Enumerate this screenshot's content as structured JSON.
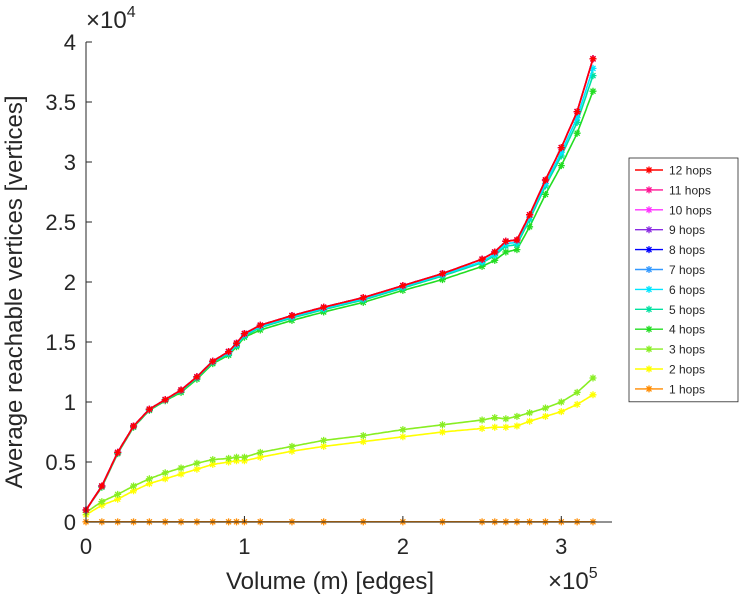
{
  "chart_data": {
    "type": "line",
    "title": "",
    "xlabel": "Volume (m) [edges]",
    "ylabel": "Average reachable vertices [vertices]",
    "x_exponent_label": "×10",
    "x_exponent": "5",
    "y_exponent_label": "×10",
    "y_exponent": "4",
    "xlim": [
      0,
      332000
    ],
    "ylim": [
      0,
      40000
    ],
    "xticks": [
      0,
      100000,
      200000,
      300000
    ],
    "xtick_labels": [
      "0",
      "1",
      "2",
      "3"
    ],
    "yticks": [
      0,
      5000,
      10000,
      15000,
      20000,
      25000,
      30000,
      35000,
      40000
    ],
    "ytick_labels": [
      "0",
      "0.5",
      "1",
      "1.5",
      "2",
      "2.5",
      "3",
      "3.5",
      "4"
    ],
    "grid": false,
    "legend_position": "right",
    "marker": "asterisk",
    "x": [
      0,
      10000,
      20000,
      30000,
      40000,
      50000,
      60000,
      70000,
      80000,
      90000,
      95000,
      100000,
      110000,
      130000,
      150000,
      175000,
      200000,
      225000,
      250000,
      258000,
      265000,
      272000,
      280000,
      290000,
      300000,
      310000,
      320000
    ],
    "series": [
      {
        "name": "12 hops",
        "color": "#ff0000",
        "values": [
          1000,
          3000,
          5800,
          8000,
          9400,
          10200,
          11000,
          12100,
          13400,
          14200,
          14900,
          15700,
          16400,
          17200,
          17900,
          18700,
          19700,
          20700,
          21900,
          22500,
          23400,
          23500,
          25600,
          28500,
          31200,
          34200,
          38600
        ]
      },
      {
        "name": "11 hops",
        "color": "#ff1493",
        "values": [
          1000,
          3000,
          5800,
          8000,
          9400,
          10200,
          11000,
          12100,
          13400,
          14200,
          14900,
          15700,
          16400,
          17200,
          17900,
          18700,
          19700,
          20700,
          21900,
          22500,
          23400,
          23500,
          25600,
          28500,
          31200,
          34200,
          38600
        ]
      },
      {
        "name": "10 hops",
        "color": "#ff33ff",
        "values": [
          1000,
          3000,
          5800,
          8000,
          9400,
          10200,
          11000,
          12100,
          13400,
          14200,
          14900,
          15700,
          16400,
          17200,
          17900,
          18700,
          19700,
          20700,
          21900,
          22500,
          23400,
          23500,
          25600,
          28500,
          31200,
          34200,
          38600
        ]
      },
      {
        "name": "9 hops",
        "color": "#8a2be2",
        "values": [
          1000,
          3000,
          5800,
          8000,
          9400,
          10200,
          11000,
          12100,
          13400,
          14200,
          14900,
          15700,
          16400,
          17200,
          17900,
          18700,
          19700,
          20700,
          21900,
          22500,
          23400,
          23500,
          25600,
          28500,
          31200,
          34200,
          38600
        ]
      },
      {
        "name": "8 hops",
        "color": "#0000ff",
        "values": [
          1000,
          3000,
          5800,
          8000,
          9400,
          10200,
          11000,
          12100,
          13400,
          14200,
          14900,
          15700,
          16400,
          17200,
          17900,
          18700,
          19700,
          20700,
          21900,
          22500,
          23400,
          23500,
          25600,
          28500,
          31200,
          34200,
          38600
        ]
      },
      {
        "name": "7 hops",
        "color": "#3399ff",
        "values": [
          1000,
          3000,
          5800,
          8000,
          9400,
          10200,
          11000,
          12100,
          13400,
          14200,
          14900,
          15700,
          16400,
          17200,
          17900,
          18700,
          19700,
          20700,
          21900,
          22500,
          23400,
          23500,
          25600,
          28500,
          31200,
          34200,
          38600
        ]
      },
      {
        "name": "6 hops",
        "color": "#00e5ff",
        "values": [
          1000,
          3000,
          5800,
          8000,
          9400,
          10200,
          11000,
          12100,
          13400,
          14100,
          14800,
          15600,
          16300,
          17100,
          17800,
          18600,
          19600,
          20600,
          21700,
          22300,
          23200,
          23300,
          25400,
          28200,
          30800,
          33700,
          37800
        ]
      },
      {
        "name": "5 hops",
        "color": "#00e0a0",
        "values": [
          1000,
          2950,
          5750,
          7950,
          9350,
          10150,
          10900,
          12000,
          13300,
          14000,
          14700,
          15500,
          16200,
          17000,
          17700,
          18500,
          19500,
          20500,
          21600,
          22200,
          23000,
          23100,
          25200,
          28000,
          30500,
          33300,
          37200
        ]
      },
      {
        "name": "4 hops",
        "color": "#22dd22",
        "values": [
          1000,
          2900,
          5700,
          7900,
          9300,
          10100,
          10800,
          11900,
          13200,
          13900,
          14600,
          15400,
          16000,
          16800,
          17500,
          18300,
          19300,
          20200,
          21300,
          21800,
          22500,
          22700,
          24600,
          27300,
          29700,
          32400,
          35900
        ]
      },
      {
        "name": "3 hops",
        "color": "#88ee22",
        "values": [
          800,
          1700,
          2300,
          3000,
          3600,
          4100,
          4500,
          4900,
          5200,
          5300,
          5400,
          5400,
          5800,
          6300,
          6800,
          7200,
          7700,
          8100,
          8500,
          8700,
          8600,
          8800,
          9100,
          9500,
          10000,
          10800,
          12000
        ]
      },
      {
        "name": "2 hops",
        "color": "#ffff00",
        "values": [
          600,
          1400,
          1900,
          2600,
          3200,
          3600,
          4000,
          4400,
          4800,
          5000,
          5100,
          5100,
          5400,
          5900,
          6300,
          6700,
          7100,
          7500,
          7800,
          7900,
          7900,
          8000,
          8400,
          8800,
          9200,
          9800,
          10600
        ]
      },
      {
        "name": "1 hops",
        "color": "#ff8c00",
        "values": [
          15,
          15,
          15,
          15,
          15,
          15,
          15,
          15,
          15,
          15,
          15,
          15,
          15,
          15,
          15,
          15,
          15,
          15,
          15,
          15,
          15,
          15,
          15,
          15,
          15,
          15,
          15
        ]
      }
    ]
  }
}
